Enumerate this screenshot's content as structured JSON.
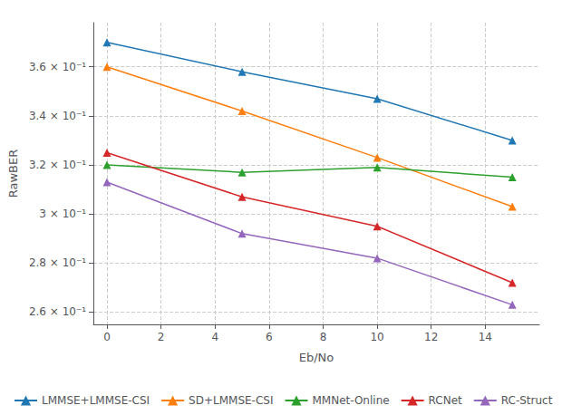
{
  "chart_data": {
    "type": "line",
    "x": [
      0,
      5,
      10,
      15
    ],
    "series": [
      {
        "name": "LMMSE+LMMSE-CSI",
        "color": "#1f77b4",
        "marker": "triangle",
        "values": [
          0.37,
          0.358,
          0.347,
          0.33
        ]
      },
      {
        "name": "SD+LMMSE-CSI",
        "color": "#ff7f0e",
        "marker": "triangle",
        "values": [
          0.36,
          0.342,
          0.323,
          0.303
        ]
      },
      {
        "name": "MMNet-Online",
        "color": "#2ca02c",
        "marker": "triangle",
        "values": [
          0.32,
          0.317,
          0.319,
          0.315
        ]
      },
      {
        "name": "RCNet",
        "color": "#d62728",
        "marker": "triangle",
        "values": [
          0.325,
          0.307,
          0.295,
          0.272
        ]
      },
      {
        "name": "RC-Struct",
        "color": "#9467bd",
        "marker": "triangle",
        "values": [
          0.313,
          0.292,
          0.282,
          0.263
        ]
      }
    ],
    "xlabel": "Eb/No",
    "ylabel": "RawBER",
    "xlim": [
      -0.5,
      16
    ],
    "ylim": [
      0.255,
      0.378
    ],
    "xticks": [
      0,
      2,
      4,
      6,
      8,
      10,
      12,
      14
    ],
    "yticks": [
      {
        "value": 0.26,
        "label": "2.6 × 10⁻¹"
      },
      {
        "value": 0.28,
        "label": "2.8 × 10⁻¹"
      },
      {
        "value": 0.3,
        "label": "3 × 10⁻¹"
      },
      {
        "value": 0.32,
        "label": "3.2 × 10⁻¹"
      },
      {
        "value": 0.34,
        "label": "3.4 × 10⁻¹"
      },
      {
        "value": 0.36,
        "label": "3.6 × 10⁻¹"
      }
    ],
    "grid": true,
    "legend": "lower left"
  }
}
